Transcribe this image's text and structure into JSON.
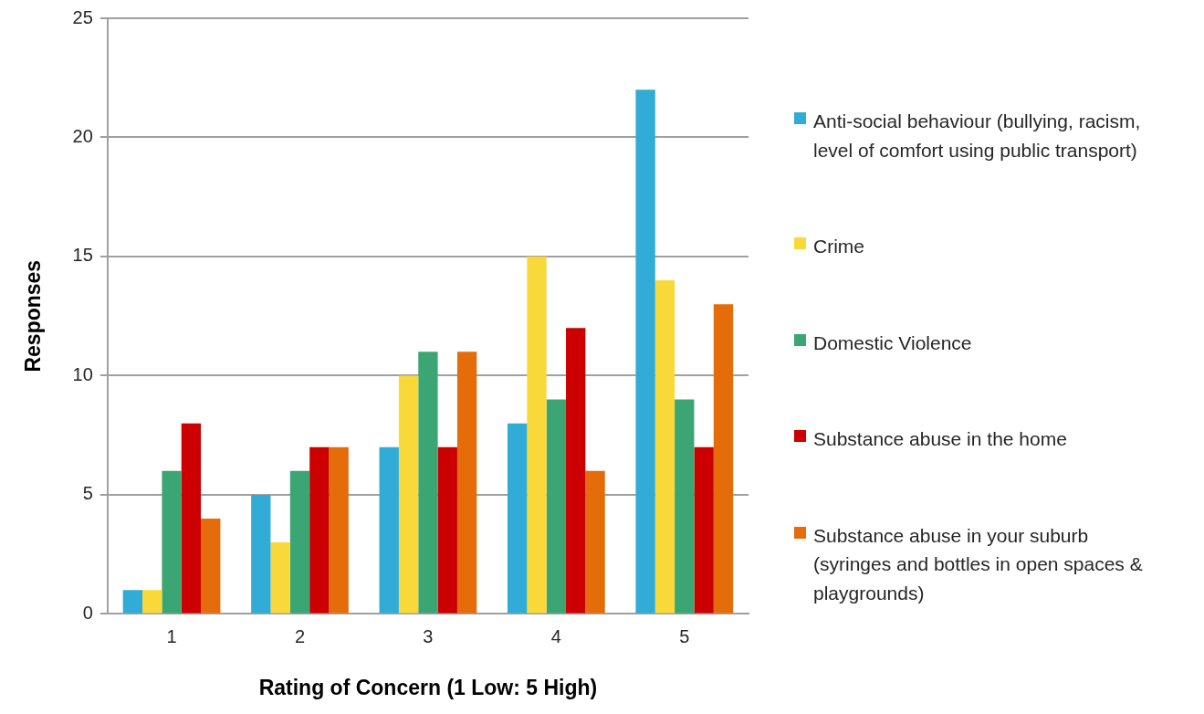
{
  "chart_data": {
    "type": "bar",
    "xlabel": "Rating of Concern (1 Low: 5 High)",
    "ylabel": "Responses",
    "categories": [
      "1",
      "2",
      "3",
      "4",
      "5"
    ],
    "series": [
      {
        "name": "Anti-social behaviour (bullying, racism, level of comfort using public transport)",
        "color": "#31acd6",
        "values": [
          1,
          5,
          7,
          8,
          22
        ]
      },
      {
        "name": "Crime",
        "color": "#f9d83a",
        "values": [
          1,
          3,
          10,
          15,
          14
        ]
      },
      {
        "name": "Domestic Violence",
        "color": "#3ba573",
        "values": [
          6,
          6,
          11,
          9,
          9
        ]
      },
      {
        "name": "Substance abuse in the home",
        "color": "#cc0000",
        "values": [
          8,
          7,
          7,
          12,
          7
        ]
      },
      {
        "name": "Substance abuse in your suburb (syringes and bottles in open spaces & playgrounds)",
        "color": "#e46c0a",
        "values": [
          4,
          7,
          11,
          6,
          13
        ]
      }
    ],
    "ylim": [
      0,
      25
    ],
    "yticks": [
      0,
      5,
      10,
      15,
      20,
      25
    ],
    "grid": "y",
    "legend": "right"
  }
}
